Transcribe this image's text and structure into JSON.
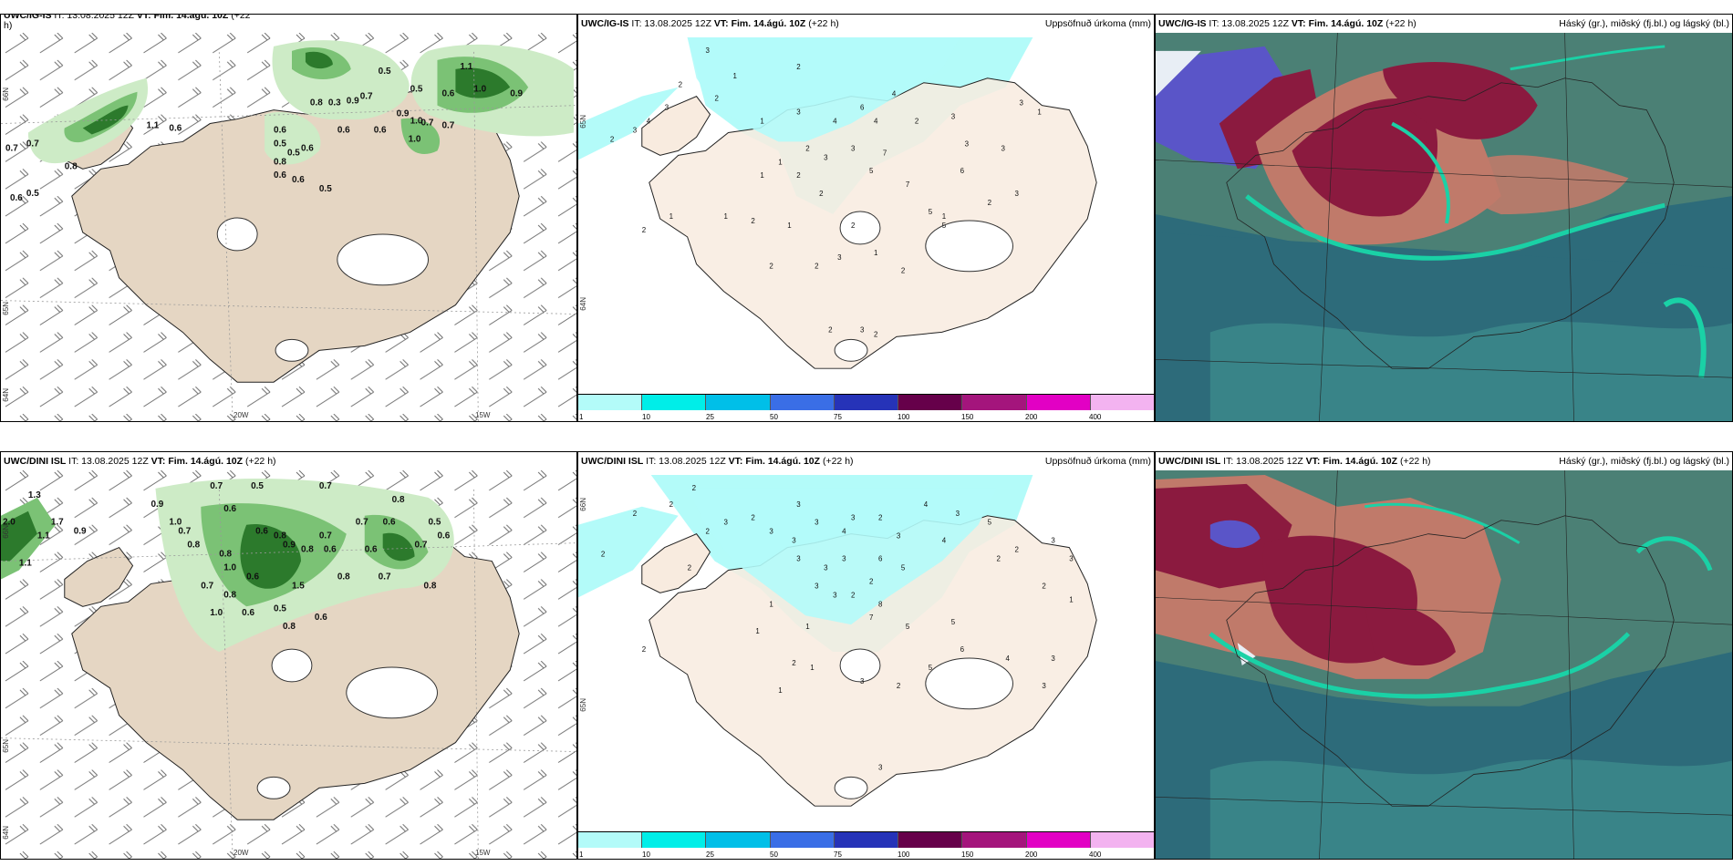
{
  "colors": {
    "land": "#e5d6c3",
    "sea": "#ffffff",
    "precip_light": "#b3fbf9",
    "green_light": "#cdebc6",
    "green_mid": "#7bc275",
    "green_dark": "#2c7a2c",
    "cloud_high": "#8b1a3f",
    "cloud_mid": "#c07a6a",
    "cloud_low_sea": "#2d6b7a",
    "cloud_low_land": "#4b8075",
    "cloud_edge": "#1ad1a6",
    "cloud_blue": "#5a55c8"
  },
  "panels": [
    {
      "id": "uwc-igis-precip-wind",
      "model": "UWC/IG-IS",
      "it_text": "IT: 13.08.2025 12Z",
      "vt_text": "VT: Fim. 14.ágú. 10Z",
      "lead": "(+22",
      "lead_wrap": "h)",
      "right_title": "",
      "icon": "wind-barbs-precip-map",
      "labels": [
        "0.7",
        "0.7",
        "0.8",
        "0.6",
        "0.5",
        "1.1",
        "0.6",
        "0.6",
        "0.5",
        "0.5",
        "0.6",
        "0.6",
        "0.8",
        "0.6",
        "0.5",
        "0.5",
        "0.8",
        "0.3",
        "0.9",
        "0.7",
        "0.9",
        "1.0",
        "0.7",
        "0.6",
        "0.6",
        "1.0",
        "0.7",
        "0.5",
        "1.1",
        "1.0",
        "0.9",
        "0.6"
      ],
      "lon_labels": [
        "20W",
        "15W"
      ],
      "lat_labels": [
        "66N",
        "65N",
        "64N"
      ]
    },
    {
      "id": "uwc-igis-accum-precip",
      "model": "UWC/IG-IS",
      "it_text": "IT: 13.08.2025 12Z",
      "vt_text": "VT: Fim. 14.ágú. 10Z",
      "lead": "(+22 h)",
      "right_title": "Uppsöfnuð úrkoma (mm)",
      "icon": "accumulated-precip-map",
      "labels": [
        "3",
        "2",
        "1",
        "2",
        "2",
        "3",
        "4",
        "1",
        "2",
        "3",
        "3",
        "4",
        "6",
        "4",
        "2",
        "3",
        "4",
        "3",
        "1",
        "2",
        "3",
        "3",
        "2",
        "5",
        "7",
        "7",
        "5",
        "3",
        "3",
        "1",
        "2",
        "3",
        "1",
        "1",
        "2",
        "2",
        "6",
        "5",
        "1",
        "2",
        "2",
        "2",
        "3",
        "2",
        "1",
        "1",
        "1",
        "2",
        "2",
        "3",
        "2"
      ],
      "lat_labels": [
        "65N",
        "64N"
      ]
    },
    {
      "id": "uwc-igis-clouds",
      "model": "UWC/IG-IS",
      "it_text": "IT: 13.08.2025 12Z",
      "vt_text": "VT: Fim. 14.ágú. 10Z",
      "lead": "(+22 h)",
      "right_title": "Háský (gr.), miðský (fj.bl.) og lágský (bl.)",
      "icon": "cloud-cover-map"
    },
    {
      "id": "uwc-dini-precip-wind",
      "model": "UWC/DINI ISL",
      "it_text": "IT: 13.08.2025 12Z",
      "vt_text": "VT: Fim. 14.ágú. 10Z",
      "lead": "(+22 h)",
      "right_title": "",
      "icon": "wind-barbs-precip-map",
      "labels": [
        "1.3",
        "2.0",
        "1.7",
        "1.1",
        "1.1",
        "0.9",
        "0.9",
        "1.0",
        "0.7",
        "0.8",
        "0.7",
        "0.6",
        "0.5",
        "0.7",
        "0.8",
        "0.6",
        "0.8",
        "1.0",
        "0.6",
        "0.7",
        "0.8",
        "1.0",
        "0.6",
        "0.5",
        "0.9",
        "0.8",
        "1.5",
        "0.7",
        "0.6",
        "0.8",
        "0.7",
        "0.6",
        "0.8",
        "0.6",
        "0.5",
        "0.7",
        "0.6",
        "0.8",
        "0.6",
        "0.7",
        "0.8"
      ],
      "lon_labels": [
        "20W",
        "15W"
      ],
      "lat_labels": [
        "66N",
        "65N",
        "64N"
      ]
    },
    {
      "id": "uwc-dini-accum-precip",
      "model": "UWC/DINI ISL",
      "it_text": "IT: 13.08.2025 12Z",
      "vt_text": "VT: Fim. 14.ágú. 10Z",
      "lead": "(+22 h)",
      "right_title": "Uppsöfnuð úrkoma (mm)",
      "icon": "accumulated-precip-map",
      "labels": [
        "2",
        "2",
        "2",
        "2",
        "3",
        "2",
        "2",
        "3",
        "3",
        "3",
        "3",
        "4",
        "3",
        "2",
        "3",
        "4",
        "3",
        "5",
        "3",
        "3",
        "3",
        "6",
        "5",
        "2",
        "3",
        "3",
        "1",
        "2",
        "2",
        "8",
        "7",
        "5",
        "5",
        "4",
        "2",
        "2",
        "3",
        "3",
        "1",
        "2",
        "1",
        "1",
        "2",
        "3",
        "1",
        "1",
        "2",
        "5",
        "6",
        "4",
        "3",
        "3",
        "2",
        "3"
      ],
      "lat_labels": [
        "66N",
        "65N",
        "64N"
      ]
    },
    {
      "id": "uwc-dini-clouds",
      "model": "UWC/DINI ISL",
      "it_text": "IT: 13.08.2025 12Z",
      "vt_text": "VT: Fim. 14.ágú. 10Z",
      "lead": "(+22 h)",
      "right_title": "Háský (gr.), miðský (fj.bl.) og lágský (bl.)",
      "icon": "cloud-cover-map"
    }
  ],
  "colorbar": {
    "colors": [
      "#b3fbf9",
      "#00eee8",
      "#00bfe8",
      "#3a6ee6",
      "#2633b8",
      "#66004a",
      "#a4157c",
      "#e200c4",
      "#f3b3f0"
    ],
    "ticks": [
      "1",
      "10",
      "25",
      "50",
      "75",
      "100",
      "150",
      "200",
      "400"
    ]
  }
}
